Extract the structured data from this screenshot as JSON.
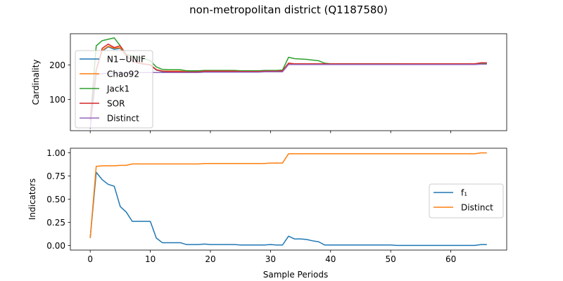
{
  "figure": {
    "title": "non-metropolitan district (Q1187580)"
  },
  "chart_data": [
    {
      "type": "line",
      "ylabel": "Cardinality",
      "xlabel": "",
      "xlim": [
        -3.3,
        69.3
      ],
      "ylim": [
        10,
        290
      ],
      "xticks": [
        0,
        10,
        20,
        30,
        40,
        50,
        60
      ],
      "xtick_labels_visible": false,
      "yticks": [
        100,
        200
      ],
      "ytick_labels": [
        "100",
        "200"
      ],
      "legend_position": "upper-left",
      "series": [
        {
          "name": "N1−UNIF",
          "color": "#1f77b4",
          "x": [
            0,
            1,
            2,
            3,
            4,
            5,
            6,
            7,
            8,
            9,
            10,
            11,
            12,
            13,
            14,
            15,
            16,
            17,
            18,
            19,
            20,
            21,
            22,
            23,
            24,
            25,
            26,
            27,
            28,
            29,
            30,
            31,
            32,
            33,
            34,
            35,
            36,
            37,
            38,
            39,
            40,
            45,
            50,
            55,
            60,
            64,
            65,
            66
          ],
          "values": [
            40,
            185,
            240,
            252,
            245,
            248,
            225,
            212,
            205,
            202,
            200,
            185,
            181,
            181,
            181,
            181,
            180,
            180,
            180,
            182,
            182,
            182,
            182,
            182,
            182,
            181,
            181,
            181,
            181,
            182,
            182,
            182,
            183,
            203,
            202,
            202,
            202,
            202,
            202,
            202,
            202,
            202,
            202,
            202,
            202,
            202,
            204,
            204
          ]
        },
        {
          "name": "Chao92",
          "color": "#ff7f0e",
          "x": [
            0,
            1,
            2,
            3,
            4,
            5,
            6,
            7,
            8,
            9,
            10,
            11,
            12,
            13,
            14,
            15,
            16,
            17,
            18,
            19,
            20,
            21,
            22,
            23,
            24,
            25,
            26,
            27,
            28,
            29,
            30,
            31,
            32,
            33,
            34,
            35,
            36,
            37,
            38,
            39,
            40,
            45,
            50,
            55,
            60,
            64,
            65,
            66
          ],
          "values": [
            40,
            185,
            242,
            254,
            248,
            250,
            226,
            213,
            206,
            203,
            201,
            186,
            182,
            182,
            182,
            182,
            181,
            181,
            181,
            183,
            183,
            183,
            183,
            183,
            183,
            182,
            182,
            182,
            182,
            183,
            183,
            183,
            184,
            204,
            203,
            203,
            203,
            203,
            203,
            203,
            203,
            203,
            203,
            203,
            203,
            203,
            205,
            205
          ]
        },
        {
          "name": "Jack1",
          "color": "#2ca02c",
          "x": [
            0,
            1,
            2,
            3,
            4,
            5,
            6,
            7,
            8,
            9,
            10,
            11,
            12,
            13,
            14,
            15,
            16,
            17,
            18,
            19,
            20,
            21,
            22,
            23,
            24,
            25,
            26,
            27,
            28,
            29,
            30,
            31,
            32,
            33,
            34,
            35,
            36,
            37,
            38,
            39,
            40,
            45,
            50,
            55,
            60,
            64,
            65,
            66
          ],
          "values": [
            40,
            255,
            270,
            274,
            278,
            255,
            230,
            225,
            222,
            218,
            212,
            194,
            187,
            186,
            186,
            186,
            183,
            183,
            183,
            184,
            184,
            184,
            184,
            184,
            184,
            183,
            183,
            183,
            183,
            184,
            184,
            184,
            185,
            222,
            218,
            217,
            216,
            214,
            212,
            205,
            203,
            203,
            203,
            202,
            202,
            202,
            205,
            205
          ]
        },
        {
          "name": "SOR",
          "color": "#d62728",
          "x": [
            0,
            1,
            2,
            3,
            4,
            5,
            6,
            7,
            8,
            9,
            10,
            11,
            12,
            13,
            14,
            15,
            16,
            17,
            18,
            19,
            20,
            21,
            22,
            23,
            24,
            25,
            26,
            27,
            28,
            29,
            30,
            31,
            32,
            33,
            34,
            35,
            36,
            37,
            38,
            39,
            40,
            45,
            50,
            55,
            60,
            64,
            65,
            66
          ],
          "values": [
            40,
            185,
            248,
            260,
            250,
            255,
            228,
            212,
            205,
            202,
            200,
            186,
            182,
            181,
            181,
            181,
            180,
            180,
            180,
            182,
            182,
            182,
            182,
            182,
            182,
            181,
            181,
            181,
            181,
            182,
            182,
            182,
            183,
            205,
            203,
            203,
            203,
            203,
            203,
            203,
            203,
            203,
            203,
            203,
            203,
            203,
            206,
            206
          ]
        },
        {
          "name": "Distinct",
          "color": "#9467bd",
          "x": [
            0,
            1,
            2,
            3,
            4,
            5,
            6,
            7,
            8,
            9,
            10,
            11,
            12,
            13,
            14,
            15,
            16,
            17,
            18,
            19,
            20,
            21,
            22,
            23,
            24,
            25,
            26,
            27,
            28,
            29,
            30,
            31,
            32,
            33,
            34,
            35,
            36,
            37,
            38,
            39,
            40,
            45,
            50,
            55,
            60,
            64,
            65,
            66
          ],
          "values": [
            15,
            172,
            175,
            175,
            176,
            176,
            177,
            178,
            178,
            178,
            178,
            178,
            178,
            178,
            178,
            178,
            178,
            178,
            178,
            179,
            179,
            179,
            179,
            179,
            179,
            179,
            179,
            179,
            179,
            180,
            180,
            180,
            180,
            201,
            201,
            201,
            201,
            201,
            201,
            201,
            201,
            201,
            201,
            201,
            201,
            201,
            202,
            202
          ]
        }
      ]
    },
    {
      "type": "line",
      "ylabel": "Indicators",
      "xlabel": "Sample Periods",
      "xlim": [
        -3.3,
        69.3
      ],
      "ylim": [
        -0.05,
        1.05
      ],
      "xticks": [
        0,
        10,
        20,
        30,
        40,
        50,
        60
      ],
      "xtick_labels": [
        "0",
        "10",
        "20",
        "30",
        "40",
        "50",
        "60"
      ],
      "yticks": [
        0.0,
        0.25,
        0.5,
        0.75,
        1.0
      ],
      "ytick_labels": [
        "0.00",
        "0.25",
        "0.50",
        "0.75",
        "1.00"
      ],
      "legend_position": "center-right",
      "series": [
        {
          "name": "f₁",
          "color": "#1f77b4",
          "x": [
            0,
            1,
            2,
            3,
            4,
            5,
            6,
            7,
            8,
            9,
            10,
            11,
            12,
            13,
            14,
            15,
            16,
            17,
            18,
            19,
            20,
            21,
            22,
            23,
            24,
            25,
            26,
            27,
            28,
            29,
            30,
            31,
            32,
            33,
            34,
            35,
            36,
            37,
            38,
            39,
            40,
            45,
            50,
            51,
            55,
            60,
            64,
            65,
            66
          ],
          "values": [
            0.08,
            0.79,
            0.71,
            0.66,
            0.64,
            0.42,
            0.36,
            0.26,
            0.26,
            0.26,
            0.26,
            0.08,
            0.03,
            0.03,
            0.03,
            0.03,
            0.01,
            0.01,
            0.01,
            0.015,
            0.01,
            0.01,
            0.01,
            0.01,
            0.01,
            0.005,
            0.005,
            0.005,
            0.005,
            0.005,
            0.01,
            0.005,
            0.005,
            0.1,
            0.07,
            0.07,
            0.065,
            0.05,
            0.04,
            0.005,
            0.005,
            0.005,
            0.005,
            0.0,
            0.0,
            0.0,
            0.0,
            0.01,
            0.01
          ]
        },
        {
          "name": "Distinct",
          "color": "#ff7f0e",
          "x": [
            0,
            1,
            2,
            3,
            4,
            5,
            6,
            7,
            8,
            9,
            10,
            15,
            18,
            19,
            20,
            25,
            29,
            30,
            31,
            32,
            33,
            34,
            40,
            50,
            60,
            64,
            65,
            66
          ],
          "values": [
            0.08,
            0.855,
            0.86,
            0.86,
            0.86,
            0.865,
            0.865,
            0.88,
            0.88,
            0.88,
            0.88,
            0.88,
            0.88,
            0.885,
            0.885,
            0.885,
            0.885,
            0.89,
            0.89,
            0.89,
            0.99,
            0.99,
            0.99,
            0.99,
            0.99,
            0.99,
            1.0,
            1.0
          ]
        }
      ]
    }
  ]
}
